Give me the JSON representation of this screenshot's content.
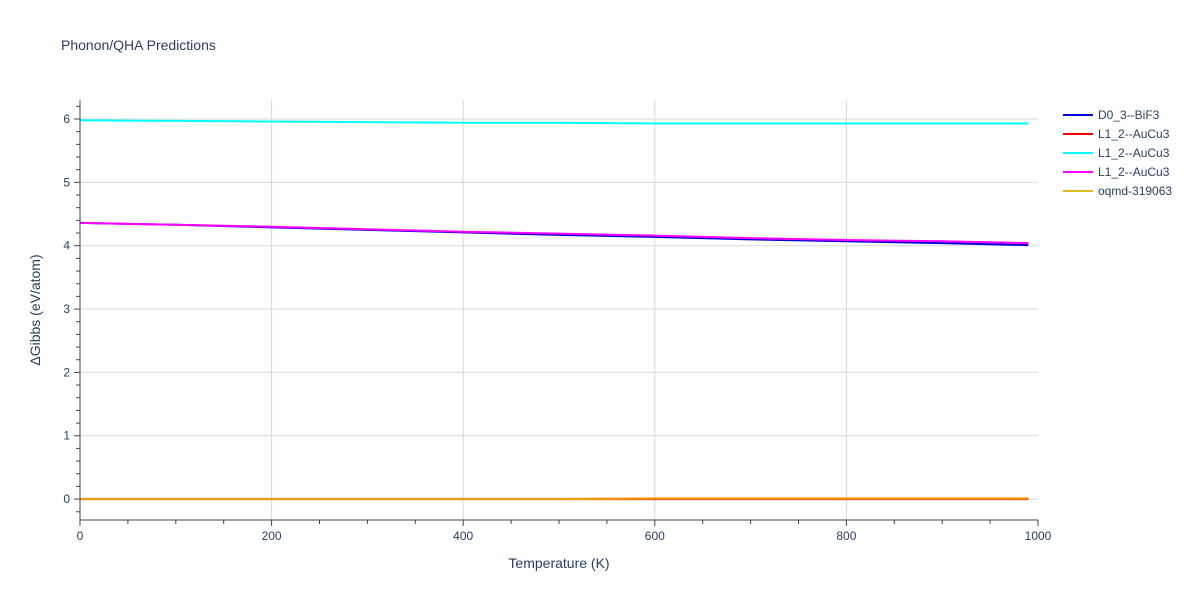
{
  "chart_data": {
    "type": "line",
    "title": "Phonon/QHA Predictions",
    "xlabel": "Temperature (K)",
    "ylabel": "ΔGibbs (eV/atom)",
    "xlim": [
      0,
      1000
    ],
    "ylim": [
      -0.33,
      6.3
    ],
    "xticks": [
      0,
      200,
      400,
      600,
      800,
      1000
    ],
    "yticks": [
      0,
      1,
      2,
      3,
      4,
      5,
      6
    ],
    "x_tick_labels": [
      "0",
      "200",
      "400",
      "600",
      "800",
      "1000"
    ],
    "y_tick_labels": [
      "0",
      "1",
      "2",
      "3",
      "4",
      "5",
      "6"
    ],
    "grid": true,
    "legend_position": "top-right (outside plot)",
    "x": [
      0,
      100,
      200,
      300,
      400,
      500,
      600,
      700,
      800,
      900,
      990
    ],
    "series": [
      {
        "name": "D0_3--BiF3",
        "color": "#0000dd",
        "values": [
          4.36,
          4.33,
          4.29,
          4.25,
          4.21,
          4.17,
          4.14,
          4.1,
          4.07,
          4.04,
          4.01
        ]
      },
      {
        "name": "L1_2--AuCu3",
        "color": "#ff0000",
        "values": [
          0.0,
          0.0,
          0.0,
          0.0,
          0.0,
          0.0,
          0.0,
          0.0,
          0.0,
          0.0,
          0.0
        ]
      },
      {
        "name": "L1_2--AuCu3",
        "color": "#00ffff",
        "values": [
          5.98,
          5.97,
          5.96,
          5.95,
          5.94,
          5.94,
          5.93,
          5.93,
          5.93,
          5.93,
          5.93
        ]
      },
      {
        "name": "L1_2--AuCu3",
        "color": "#ff00ff",
        "values": [
          4.36,
          4.33,
          4.3,
          4.26,
          4.22,
          4.19,
          4.16,
          4.12,
          4.09,
          4.07,
          4.04
        ]
      },
      {
        "name": "oqmd-319063",
        "color": "#ddbb22",
        "values": [
          0.0,
          0.0,
          0.0,
          0.0,
          0.0,
          0.0,
          0.01,
          0.01,
          0.01,
          0.01,
          0.01
        ]
      }
    ]
  }
}
